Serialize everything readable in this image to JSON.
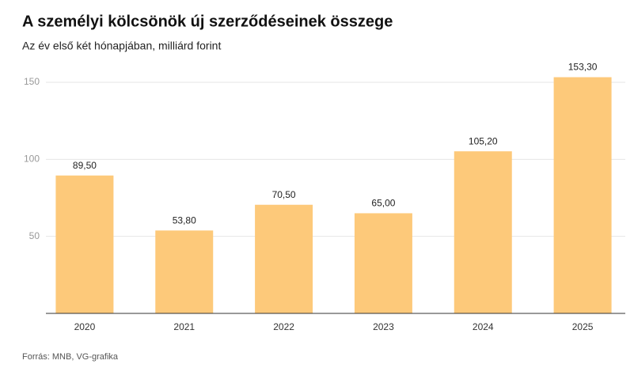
{
  "chart_data": {
    "type": "bar",
    "title": "A személyi kölcsönök új szerződéseinek összege",
    "subtitle": "Az év első két hónapjában, milliárd forint",
    "source": "Forrás: MNB, VG-grafika",
    "categories": [
      "2020",
      "2021",
      "2022",
      "2023",
      "2024",
      "2025"
    ],
    "values": [
      89.5,
      53.8,
      70.5,
      65.0,
      105.2,
      153.3
    ],
    "value_labels": [
      "89,50",
      "53,80",
      "70,50",
      "65,00",
      "105,20",
      "153,30"
    ],
    "color": "#fdc97a",
    "ylim": [
      0,
      160
    ],
    "yticks": [
      50,
      100,
      150
    ],
    "grid": true
  }
}
